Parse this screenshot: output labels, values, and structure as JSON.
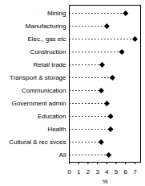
{
  "chart_data": {
    "type": "dot",
    "orientation": "horizontal",
    "categories": [
      "Mining",
      "Manufacturing",
      "Elec., gas etc",
      "Construction",
      "Retail trade",
      "Transport & storage",
      "Communication",
      "Government admin",
      "Education",
      "Health",
      "Cultural & rec svces",
      "All"
    ],
    "values": [
      6.0,
      4.0,
      7.0,
      5.6,
      3.5,
      4.6,
      3.4,
      4.0,
      4.4,
      4.4,
      3.4,
      4.2
    ],
    "color": "#000000",
    "marker": "diamond",
    "line_style": "dashed",
    "xlabel": "%",
    "xlim": [
      0,
      7.6
    ],
    "xticks": [
      0,
      1,
      2,
      3,
      4,
      5,
      6,
      7
    ],
    "grid": false
  }
}
